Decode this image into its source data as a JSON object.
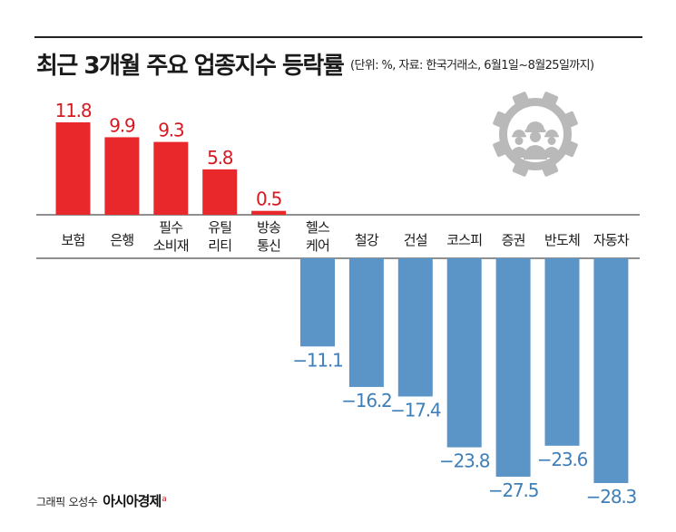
{
  "title": "최근 3개월 주요 업종지수 등락률",
  "subtitle": "(단위: %, 자료: 한국거래소, 6월1일~8월25일까지)",
  "credit": {
    "label": "그래픽",
    "author": "오성수",
    "brand": "아시아경제",
    "brand_mark": "a"
  },
  "icons": [
    "gear-workers-icon"
  ],
  "colors": {
    "positive": "#e8282b",
    "negative": "#5b95c8",
    "positive_label": "#d71920",
    "negative_label": "#3e7fb9",
    "icon": "#b9b9b9"
  },
  "chart_data": {
    "type": "bar",
    "categories": [
      [
        "보험"
      ],
      [
        "은행"
      ],
      [
        "필수",
        "소비재"
      ],
      [
        "유틸",
        "리티"
      ],
      [
        "방송",
        "통신"
      ],
      [
        "헬스",
        "케어"
      ],
      [
        "철강"
      ],
      [
        "건설"
      ],
      [
        "코스피"
      ],
      [
        "증권"
      ],
      [
        "반도체"
      ],
      [
        "자동차"
      ]
    ],
    "values": [
      11.8,
      9.9,
      9.3,
      5.8,
      0.5,
      -11.1,
      -16.2,
      -17.4,
      -23.8,
      -27.5,
      -23.6,
      -28.3
    ],
    "value_labels": [
      "11.8",
      "9.9",
      "9.3",
      "5.8",
      "0.5",
      "−11.1",
      "−16.2",
      "−17.4",
      "−23.8",
      "−27.5",
      "−23.6",
      "−28.3"
    ],
    "ylim": [
      -28.3,
      11.8
    ],
    "xlabel": "",
    "ylabel": "",
    "grid": false,
    "legend": "none"
  }
}
